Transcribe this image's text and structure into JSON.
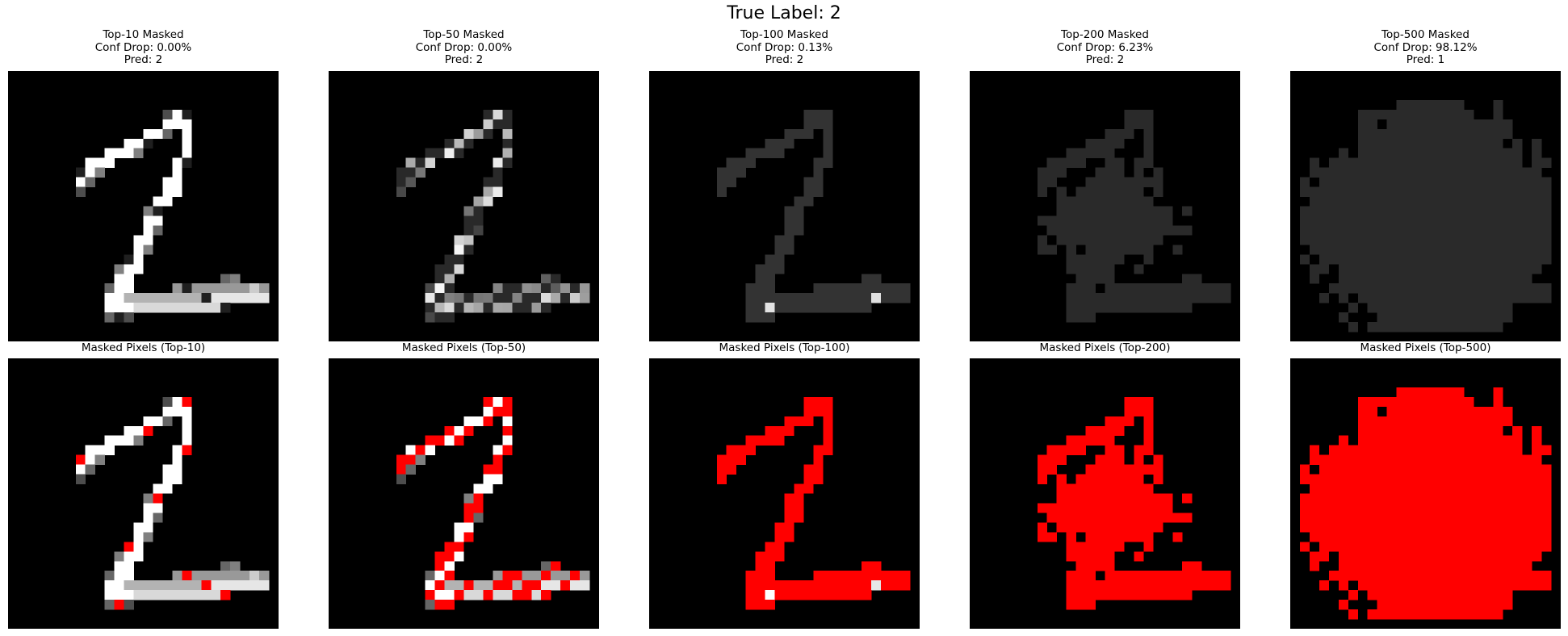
{
  "figure": {
    "title": "True Label: 2"
  },
  "top_row": [
    {
      "title": "Top-10 Masked",
      "conf_drop": "Conf Drop: 0.00%",
      "pred": "Pred: 2"
    },
    {
      "title": "Top-50 Masked",
      "conf_drop": "Conf Drop: 0.00%",
      "pred": "Pred: 2"
    },
    {
      "title": "Top-100 Masked",
      "conf_drop": "Conf Drop: 0.13%",
      "pred": "Pred: 2"
    },
    {
      "title": "Top-200 Masked",
      "conf_drop": "Conf Drop: 6.23%",
      "pred": "Pred: 2"
    },
    {
      "title": "Top-500 Masked",
      "conf_drop": "Conf Drop: 98.12%",
      "pred": "Pred: 1"
    }
  ],
  "bottom_row": [
    {
      "title": "Masked Pixels (Top-10)"
    },
    {
      "title": "Masked Pixels (Top-50)"
    },
    {
      "title": "Masked Pixels (Top-100)"
    },
    {
      "title": "Masked Pixels (Top-200)"
    },
    {
      "title": "Masked Pixels (Top-500)"
    }
  ],
  "colors": {
    "mask_highlight": "#ff0000",
    "background": "#000000",
    "fill_value_top500": "#2a2a2a"
  },
  "image": {
    "grid_size": 28,
    "masked_counts": [
      10,
      50,
      100,
      200,
      500
    ]
  }
}
